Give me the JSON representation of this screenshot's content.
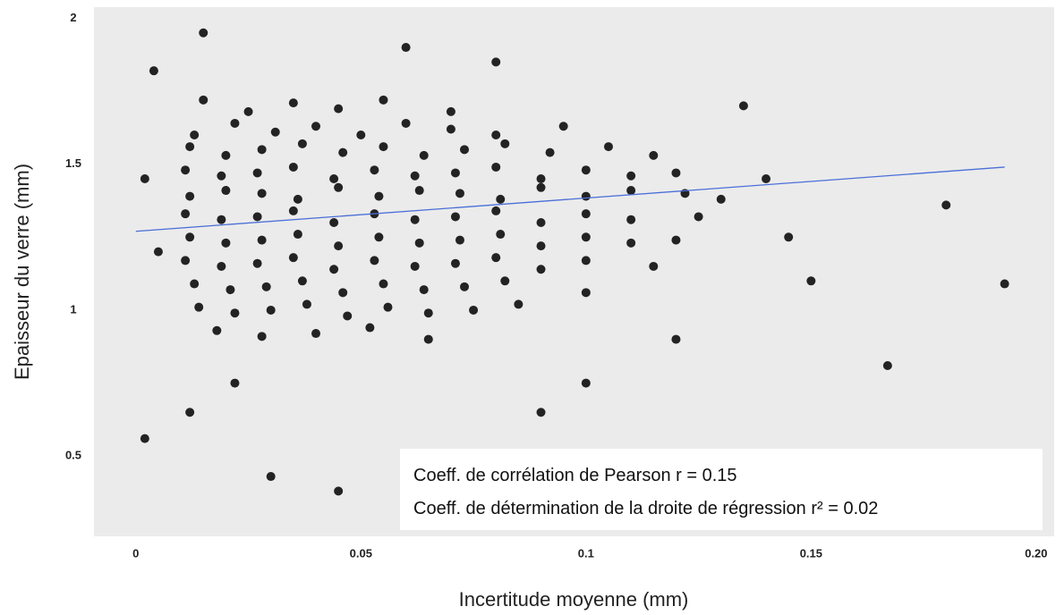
{
  "chart_data": {
    "type": "scatter",
    "x_label": "Incertitude moyenne (mm)",
    "y_label": "Epaisseur du verre (mm)",
    "annotations": [
      "Coeff. de corrélation de Pearson r = 0.15",
      "Coeff. de détermination de la droite de régression r² = 0.02"
    ],
    "color": "#000000",
    "x": [
      0.015,
      0.025,
      0.035,
      0.045,
      0.055,
      0.07,
      0.013,
      0.022,
      0.031,
      0.04,
      0.05,
      0.06,
      0.07,
      0.08,
      0.095,
      0.012,
      0.02,
      0.028,
      0.037,
      0.046,
      0.055,
      0.064,
      0.073,
      0.082,
      0.092,
      0.105,
      0.115,
      0.011,
      0.019,
      0.027,
      0.035,
      0.044,
      0.053,
      0.062,
      0.071,
      0.08,
      0.09,
      0.1,
      0.11,
      0.12,
      0.012,
      0.02,
      0.028,
      0.036,
      0.045,
      0.054,
      0.063,
      0.072,
      0.081,
      0.09,
      0.1,
      0.11,
      0.122,
      0.13,
      0.011,
      0.019,
      0.027,
      0.035,
      0.044,
      0.053,
      0.062,
      0.071,
      0.08,
      0.09,
      0.1,
      0.11,
      0.125,
      0.012,
      0.02,
      0.028,
      0.036,
      0.045,
      0.054,
      0.063,
      0.072,
      0.081,
      0.09,
      0.1,
      0.11,
      0.12,
      0.011,
      0.019,
      0.027,
      0.035,
      0.044,
      0.053,
      0.062,
      0.071,
      0.08,
      0.09,
      0.1,
      0.115,
      0.013,
      0.021,
      0.029,
      0.037,
      0.046,
      0.055,
      0.064,
      0.073,
      0.082,
      0.1,
      0.014,
      0.022,
      0.03,
      0.038,
      0.047,
      0.056,
      0.065,
      0.075,
      0.085,
      0.018,
      0.028,
      0.04,
      0.052,
      0.065,
      0.004,
      0.002,
      0.03,
      0.045,
      0.1,
      0.14,
      0.15,
      0.167,
      0.18,
      0.193,
      0.06,
      0.005,
      0.002,
      0.012,
      0.09,
      0.12,
      0.135,
      0.08,
      0.015,
      0.022,
      0.145
    ],
    "y": [
      1.72,
      1.68,
      1.71,
      1.69,
      1.72,
      1.68,
      1.6,
      1.64,
      1.61,
      1.63,
      1.6,
      1.64,
      1.62,
      1.6,
      1.63,
      1.56,
      1.53,
      1.55,
      1.57,
      1.54,
      1.56,
      1.53,
      1.55,
      1.57,
      1.54,
      1.56,
      1.53,
      1.48,
      1.46,
      1.47,
      1.49,
      1.45,
      1.48,
      1.46,
      1.47,
      1.49,
      1.45,
      1.48,
      1.46,
      1.47,
      1.39,
      1.41,
      1.4,
      1.38,
      1.42,
      1.39,
      1.41,
      1.4,
      1.38,
      1.42,
      1.39,
      1.41,
      1.4,
      1.38,
      1.33,
      1.31,
      1.32,
      1.34,
      1.3,
      1.33,
      1.31,
      1.32,
      1.34,
      1.3,
      1.33,
      1.31,
      1.32,
      1.25,
      1.23,
      1.24,
      1.26,
      1.22,
      1.25,
      1.23,
      1.24,
      1.26,
      1.22,
      1.25,
      1.23,
      1.24,
      1.17,
      1.15,
      1.16,
      1.18,
      1.14,
      1.17,
      1.15,
      1.16,
      1.18,
      1.14,
      1.17,
      1.15,
      1.09,
      1.07,
      1.08,
      1.1,
      1.06,
      1.09,
      1.07,
      1.08,
      1.1,
      1.06,
      1.01,
      0.99,
      1.0,
      1.02,
      0.98,
      1.01,
      0.99,
      1.0,
      1.02,
      0.93,
      0.91,
      0.92,
      0.94,
      0.9,
      1.82,
      0.56,
      0.43,
      0.38,
      0.75,
      1.45,
      1.1,
      0.81,
      1.36,
      1.09,
      1.9,
      1.2,
      1.45,
      0.65,
      0.65,
      0.9,
      1.7,
      1.85,
      1.95,
      0.75,
      1.25
    ],
    "regression": {
      "x": [
        0,
        0.193
      ],
      "y": [
        1.27,
        1.49
      ],
      "color": "#4a6fd8"
    },
    "xlim": [
      -0.0093,
      0.204
    ],
    "ylim": [
      0.225,
      2.038
    ],
    "xticks": [
      0,
      0.05,
      0.1,
      0.15,
      {
        "value": 0.2,
        "label": "0.20"
      }
    ],
    "yticks": [
      0.5,
      1,
      1.5,
      2
    ],
    "grid": false
  }
}
